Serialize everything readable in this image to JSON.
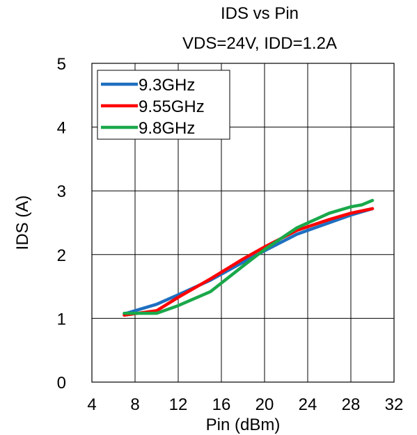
{
  "chart_data": {
    "type": "line",
    "title": "IDS vs Pin",
    "subtitle": "VDS=24V, IDD=1.2A",
    "xlabel": "Pin (dBm)",
    "ylabel": "IDS (A)",
    "xlim": [
      4,
      32
    ],
    "ylim": [
      0,
      5
    ],
    "x_ticks": [
      4,
      8,
      12,
      16,
      20,
      24,
      28,
      32
    ],
    "y_ticks": [
      0,
      1,
      2,
      3,
      4,
      5
    ],
    "grid": true,
    "legend_position": "top-left",
    "series": [
      {
        "name": "9.3GHz",
        "color": "#1f6fc0",
        "x": [
          7,
          10,
          12,
          15,
          18,
          20,
          23,
          26,
          28,
          30
        ],
        "y": [
          1.07,
          1.22,
          1.37,
          1.6,
          1.88,
          2.06,
          2.32,
          2.5,
          2.62,
          2.72
        ]
      },
      {
        "name": "9.55GHz",
        "color": "#ff0000",
        "x": [
          7,
          10,
          12,
          15,
          18,
          20,
          23,
          26,
          28,
          30
        ],
        "y": [
          1.05,
          1.12,
          1.33,
          1.62,
          1.93,
          2.12,
          2.38,
          2.55,
          2.65,
          2.72
        ]
      },
      {
        "name": "9.8GHz",
        "color": "#1aa84a",
        "x": [
          7,
          10,
          12,
          15,
          18,
          20,
          23,
          26,
          28,
          29,
          30
        ],
        "y": [
          1.08,
          1.08,
          1.2,
          1.42,
          1.82,
          2.08,
          2.42,
          2.65,
          2.75,
          2.78,
          2.85
        ]
      }
    ]
  }
}
